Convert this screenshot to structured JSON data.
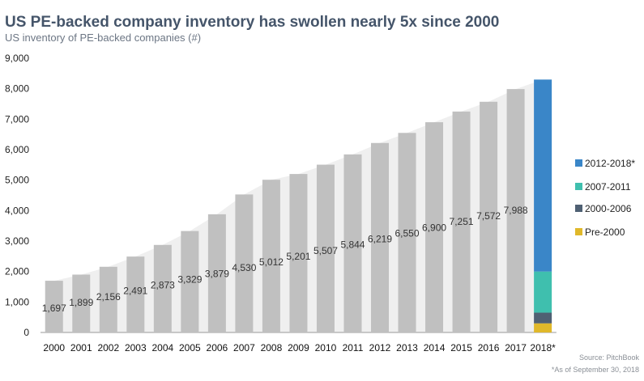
{
  "header": {
    "title": "US PE-backed company inventory has swollen nearly 5x since 2000",
    "subtitle": "US inventory of PE-backed companies (#)"
  },
  "footer": {
    "source": "Source: PitchBook",
    "note": "*As of September 30, 2018"
  },
  "chart_data": {
    "type": "bar",
    "title": "US PE-backed company inventory has swollen nearly 5x since 2000",
    "subtitle": "US inventory of PE-backed companies (#)",
    "xlabel": "",
    "ylabel": "",
    "ylim": [
      0,
      9000
    ],
    "y_ticks": [
      0,
      1000,
      2000,
      3000,
      4000,
      5000,
      6000,
      7000,
      8000,
      9000
    ],
    "y_tick_labels": [
      "0",
      "1,000",
      "2,000",
      "3,000",
      "4,000",
      "5,000",
      "6,000",
      "7,000",
      "8,000",
      "9,000"
    ],
    "grid": false,
    "categories": [
      "2000",
      "2001",
      "2002",
      "2003",
      "2004",
      "2005",
      "2006",
      "2007",
      "2008",
      "2009",
      "2010",
      "2011",
      "2012",
      "2013",
      "2014",
      "2015",
      "2016",
      "2017",
      "2018*"
    ],
    "values": [
      1697,
      1899,
      2156,
      2491,
      2873,
      3329,
      3879,
      4530,
      5012,
      5201,
      5507,
      5844,
      6219,
      6550,
      6900,
      7251,
      7572,
      7988,
      null
    ],
    "value_labels": [
      "1,697",
      "1,899",
      "2,156",
      "2,491",
      "2,873",
      "3,329",
      "3,879",
      "4,530",
      "5,012",
      "5,201",
      "5,507",
      "5,844",
      "6,219",
      "6,550",
      "6,900",
      "7,251",
      "7,572",
      "7,988",
      ""
    ],
    "bar_color": "#c0c0c0",
    "area_color": "#efefef",
    "stacked_2018": [
      {
        "name": "Pre-2000",
        "value": 300,
        "color": "#e0b82a"
      },
      {
        "name": "2000-2006",
        "value": 350,
        "color": "#4f6073"
      },
      {
        "name": "2007-2011",
        "value": 1350,
        "color": "#3fbfae"
      },
      {
        "name": "2012-2018*",
        "value": 6300,
        "color": "#3a86c8"
      }
    ],
    "legend": {
      "placement": "right",
      "entries": [
        {
          "name": "2012-2018*",
          "color": "#3a86c8"
        },
        {
          "name": "2007-2011",
          "color": "#3fbfae"
        },
        {
          "name": "2000-2006",
          "color": "#4f6073"
        },
        {
          "name": "Pre-2000",
          "color": "#e0b82a"
        }
      ]
    }
  }
}
